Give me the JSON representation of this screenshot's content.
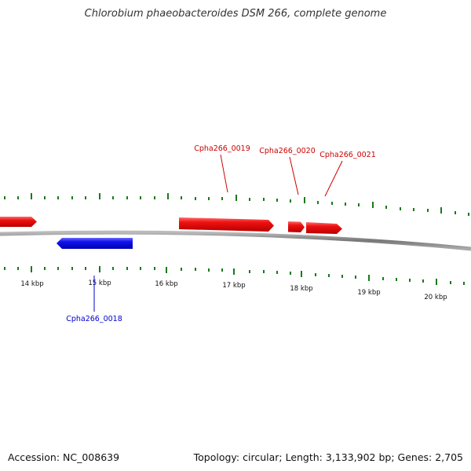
{
  "title": "Chlorobium phaeobacteroides DSM 266, complete genome",
  "footer": {
    "accession": "Accession: NC_008639",
    "stats": "Topology: circular; Length: 3,133,902 bp; Genes: 2,705"
  },
  "kbp_labels": [
    "14 kbp",
    "15 kbp",
    "16 kbp",
    "17 kbp",
    "18 kbp",
    "19 kbp",
    "20 kbp"
  ],
  "genes": [
    {
      "name": "Cpha266_0018",
      "strand": "reverse",
      "color": "#0000cc"
    },
    {
      "name": "Cpha266_0019",
      "strand": "forward",
      "color": "#cc0000"
    },
    {
      "name": "Cpha266_0020",
      "strand": "forward",
      "color": "#cc0000"
    },
    {
      "name": "Cpha266_0021",
      "strand": "forward",
      "color": "#cc0000"
    }
  ],
  "colors": {
    "forward": "#ee1111",
    "reverse": "#1111ee",
    "tick": "#1a7a1a",
    "backbone": "#888888"
  }
}
